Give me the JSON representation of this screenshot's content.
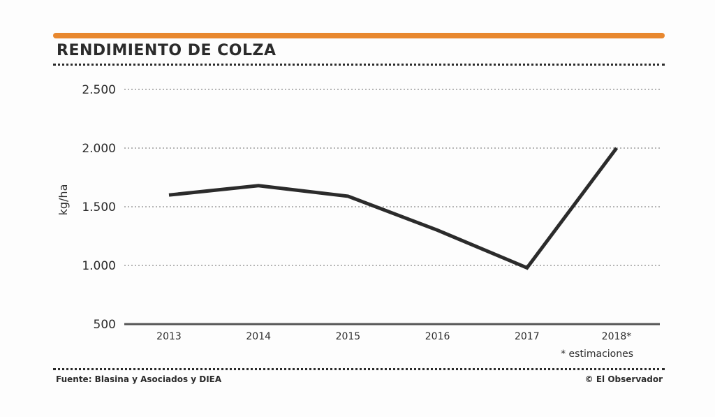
{
  "header": {
    "title": "RENDIMIENTO DE COLZA"
  },
  "footer": {
    "source": "Fuente: Blasina y Asociados y DIEA",
    "credit": "© El Observador"
  },
  "note": "* estimaciones",
  "colors": {
    "accent": "#e8882f",
    "line": "#2b2b2b",
    "grid": "#8a8a8a"
  },
  "chart_data": {
    "type": "line",
    "title": "RENDIMIENTO DE COLZA",
    "xlabel": "",
    "ylabel": "kg/ha",
    "categories": [
      "2013",
      "2014",
      "2015",
      "2016",
      "2017",
      "2018*"
    ],
    "values": [
      1600,
      1680,
      1590,
      1300,
      980,
      2000
    ],
    "ylim": [
      500,
      2500
    ],
    "yticks": [
      500,
      1000,
      1500,
      2000,
      2500
    ],
    "ytick_labels": [
      "500",
      "1.000",
      "1.500",
      "2.000",
      "2.500"
    ],
    "grid": true
  }
}
